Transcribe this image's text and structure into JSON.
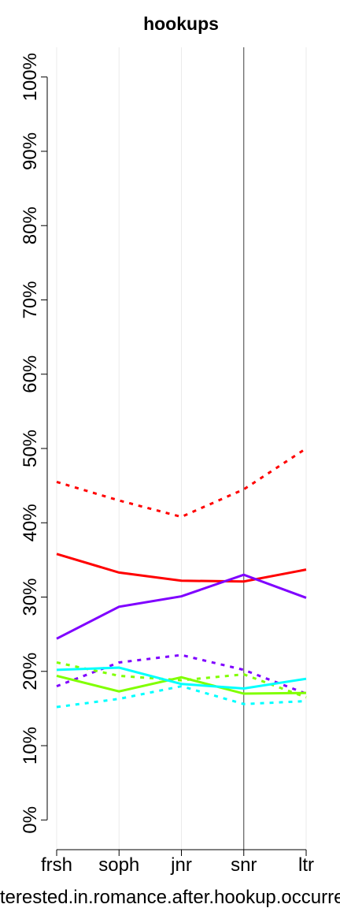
{
  "chart_data": {
    "type": "line",
    "title": "hookups",
    "x_label": "interested.in.romance.after.hookup.occurred",
    "categories": [
      "frsh",
      "soph",
      "jnr",
      "snr",
      "ltr"
    ],
    "ylim": [
      -4,
      104
    ],
    "yticks": [
      {
        "value": 0,
        "label": "0%"
      },
      {
        "value": 10,
        "label": "10%"
      },
      {
        "value": 20,
        "label": "20%"
      },
      {
        "value": 30,
        "label": "30%"
      },
      {
        "value": 40,
        "label": "40%"
      },
      {
        "value": 50,
        "label": "50%"
      },
      {
        "value": 60,
        "label": "60%"
      },
      {
        "value": 70,
        "label": "70%"
      },
      {
        "value": 80,
        "label": "80%"
      },
      {
        "value": 90,
        "label": "90%"
      },
      {
        "value": 100,
        "label": "100%"
      }
    ],
    "grid": true,
    "highlight_category": "snr",
    "series": [
      {
        "color": "#ff0000",
        "dashed": true,
        "values": [
          45.5,
          43,
          40.8,
          44.5,
          50
        ]
      },
      {
        "color": "#ff0000",
        "dashed": false,
        "values": [
          35.8,
          33.3,
          32.2,
          32.1,
          33.7
        ]
      },
      {
        "color": "#7f00ff",
        "dashed": false,
        "values": [
          24.4,
          28.7,
          30.1,
          33,
          29.9
        ]
      },
      {
        "color": "#7f00ff",
        "dashed": true,
        "values": [
          18,
          21.2,
          22.2,
          20.2,
          17
        ]
      },
      {
        "color": "#80ff00",
        "dashed": false,
        "values": [
          19.4,
          17.3,
          19.2,
          17,
          17.1
        ]
      },
      {
        "color": "#80ff00",
        "dashed": true,
        "values": [
          21.2,
          19.4,
          18.8,
          19.6,
          16.5
        ]
      },
      {
        "color": "#00ffff",
        "dashed": false,
        "values": [
          20.2,
          20.5,
          18.3,
          17.7,
          19
        ]
      },
      {
        "color": "#00ffff",
        "dashed": true,
        "values": [
          15.2,
          16.3,
          18,
          15.6,
          16
        ]
      }
    ]
  }
}
